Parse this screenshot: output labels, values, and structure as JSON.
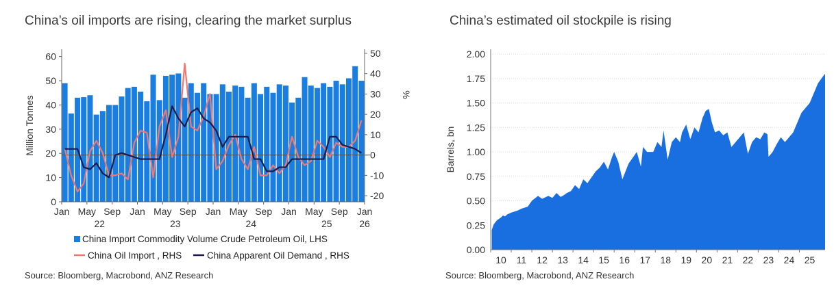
{
  "charts": [
    {
      "title": "China’s oil imports are rising, clearing the market surplus",
      "source": "Source: Bloomberg, Macrobond, ANZ Research",
      "chart_data": {
        "type": "bar",
        "y_left_label": "Million Tonnes",
        "y_right_label": "%",
        "y_left_ticks": [
          "0",
          "10",
          "20",
          "30",
          "40",
          "50",
          "60"
        ],
        "y_left_lim": [
          0,
          63
        ],
        "y_right_ticks": [
          "-20",
          "-10",
          "0",
          "10",
          "20",
          "30",
          "40",
          "50"
        ],
        "y_right_lim": [
          -23,
          52
        ],
        "x_month_ticks": [
          "Jan",
          "May",
          "Sep",
          "Jan",
          "May",
          "Sep",
          "Jan",
          "May",
          "Sep",
          "Jan",
          "May",
          "Sep",
          "Jan"
        ],
        "x_year_ticks": [
          "22",
          "23",
          "24",
          "25",
          "26"
        ],
        "months": [
          "2022-01",
          "2022-02",
          "2022-03",
          "2022-04",
          "2022-05",
          "2022-06",
          "2022-07",
          "2022-08",
          "2022-09",
          "2022-10",
          "2022-11",
          "2022-12",
          "2023-01",
          "2023-02",
          "2023-03",
          "2023-04",
          "2023-05",
          "2023-06",
          "2023-07",
          "2023-08",
          "2023-09",
          "2023-10",
          "2023-11",
          "2023-12",
          "2024-01",
          "2024-02",
          "2024-03",
          "2024-04",
          "2024-05",
          "2024-06",
          "2024-07",
          "2024-08",
          "2024-09",
          "2024-10",
          "2024-11",
          "2024-12",
          "2025-01",
          "2025-02",
          "2025-03",
          "2025-04",
          "2025-05",
          "2025-06",
          "2025-07",
          "2025-08",
          "2025-09",
          "2025-10",
          "2025-11",
          "2025-12"
        ],
        "series": [
          {
            "name": "China Import Commodity Volume Crude Petroleum Oil, LHS",
            "type": "bar",
            "axis": "left",
            "color": "#1a7ee0",
            "values": [
              49,
              36.5,
              43,
              43.2,
              44,
              36,
              37.5,
              40,
              40,
              43.5,
              47,
              47.5,
              45.5,
              41.5,
              52.5,
              42,
              52,
              52.5,
              53,
              43,
              49,
              45,
              49,
              44.5,
              44.5,
              48.5,
              45.5,
              48,
              47.5,
              43,
              49,
              44.5,
              47.5,
              45,
              48.5,
              48,
              41,
              43,
              51.5,
              48,
              47,
              49,
              47.5,
              50,
              48.5,
              51,
              56,
              50
            ]
          },
          {
            "name": "China Oil Import , RHS",
            "type": "line",
            "axis": "right",
            "color": "#f07870",
            "values": [
              3,
              -10,
              -18,
              -14,
              2,
              7,
              1,
              -10,
              -10,
              -9,
              -12,
              6,
              12,
              11,
              -11,
              14,
              22,
              -1,
              9,
              45,
              14,
              12,
              19,
              30,
              -7,
              -3,
              5,
              10,
              -2,
              -7,
              4,
              -10,
              -10,
              -5,
              -9,
              -5,
              9,
              -1,
              -5,
              -3,
              7,
              4,
              -1,
              6,
              4,
              4,
              7,
              17
            ]
          },
          {
            "name": "China Apparent Oil Demand , RHS",
            "type": "line",
            "axis": "right",
            "color": "#1c1c4a",
            "values": [
              3,
              3,
              3,
              -6,
              -7,
              -4,
              -9,
              -11,
              0,
              1,
              0,
              -1,
              -2,
              -2,
              -2,
              -2,
              10,
              24,
              18,
              14,
              21,
              23,
              18,
              16,
              12,
              4,
              9,
              9,
              9,
              9,
              -2,
              -2,
              -8,
              -8,
              -6,
              -6,
              -2,
              -2,
              -2,
              -2,
              -2,
              -2,
              9,
              9,
              5,
              4,
              3,
              1
            ]
          }
        ],
        "legend_rows": [
          [
            "China Import Commodity Volume Crude Petroleum Oil, LHS"
          ],
          [
            "China Oil Import , RHS",
            "China Apparent Oil Demand , RHS"
          ]
        ]
      }
    },
    {
      "title": "China’s estimated oil stockpile is rising",
      "source": "Source: Bloomberg, Macrobond, ANZ Research",
      "chart_data": {
        "type": "area",
        "ylabel": "Barrels, bn",
        "ylim": [
          0,
          2.05
        ],
        "y_ticks": [
          "0.00",
          "0.25",
          "0.50",
          "0.75",
          "1.00",
          "1.25",
          "1.50",
          "1.75",
          "2.00"
        ],
        "x_ticks": [
          "10",
          "11",
          "12",
          "13",
          "14",
          "15",
          "16",
          "17",
          "18",
          "19",
          "20",
          "21",
          "22",
          "23",
          "24",
          "25"
        ],
        "xlim": [
          2009.5,
          2025.75
        ],
        "grid": true,
        "color": "#1a6fe0",
        "x": [
          2009.55,
          2009.65,
          2009.8,
          2010.0,
          2010.1,
          2010.2,
          2010.3,
          2010.5,
          2010.8,
          2011.0,
          2011.3,
          2011.5,
          2011.8,
          2012.0,
          2012.3,
          2012.5,
          2012.7,
          2012.9,
          2013.0,
          2013.2,
          2013.4,
          2013.6,
          2013.8,
          2014.0,
          2014.2,
          2014.4,
          2014.6,
          2014.8,
          2015.0,
          2015.2,
          2015.4,
          2015.5,
          2015.7,
          2015.9,
          2016.2,
          2016.4,
          2016.6,
          2016.8,
          2016.9,
          2017.1,
          2017.4,
          2017.6,
          2017.8,
          2017.9,
          2018.1,
          2018.3,
          2018.5,
          2018.7,
          2018.8,
          2019.0,
          2019.2,
          2019.4,
          2019.6,
          2019.8,
          2019.95,
          2020.1,
          2020.25,
          2020.4,
          2020.6,
          2020.8,
          2021.0,
          2021.2,
          2021.4,
          2021.6,
          2021.8,
          2022.0,
          2022.2,
          2022.4,
          2022.6,
          2022.8,
          2022.95,
          2023.0,
          2023.2,
          2023.4,
          2023.6,
          2023.8,
          2024.0,
          2024.2,
          2024.4,
          2024.6,
          2024.8,
          2025.0,
          2025.2,
          2025.4,
          2025.6,
          2025.75
        ],
        "values": [
          0.2,
          0.26,
          0.3,
          0.33,
          0.35,
          0.34,
          0.36,
          0.38,
          0.4,
          0.42,
          0.44,
          0.5,
          0.55,
          0.52,
          0.55,
          0.53,
          0.58,
          0.54,
          0.55,
          0.58,
          0.6,
          0.66,
          0.62,
          0.72,
          0.68,
          0.74,
          0.8,
          0.84,
          0.9,
          0.82,
          0.95,
          1.0,
          0.9,
          0.72,
          0.88,
          0.94,
          1.0,
          0.85,
          1.05,
          1.0,
          1.0,
          1.1,
          1.05,
          1.22,
          0.92,
          1.1,
          1.15,
          1.1,
          1.2,
          1.28,
          1.13,
          1.25,
          1.2,
          1.35,
          1.42,
          1.44,
          1.3,
          1.2,
          1.22,
          1.17,
          1.2,
          1.05,
          1.1,
          1.15,
          1.2,
          0.98,
          1.1,
          1.15,
          1.13,
          1.2,
          1.18,
          0.95,
          1.0,
          1.08,
          1.15,
          1.1,
          1.15,
          1.2,
          1.3,
          1.4,
          1.45,
          1.5,
          1.6,
          1.7,
          1.76,
          1.8
        ]
      }
    }
  ]
}
